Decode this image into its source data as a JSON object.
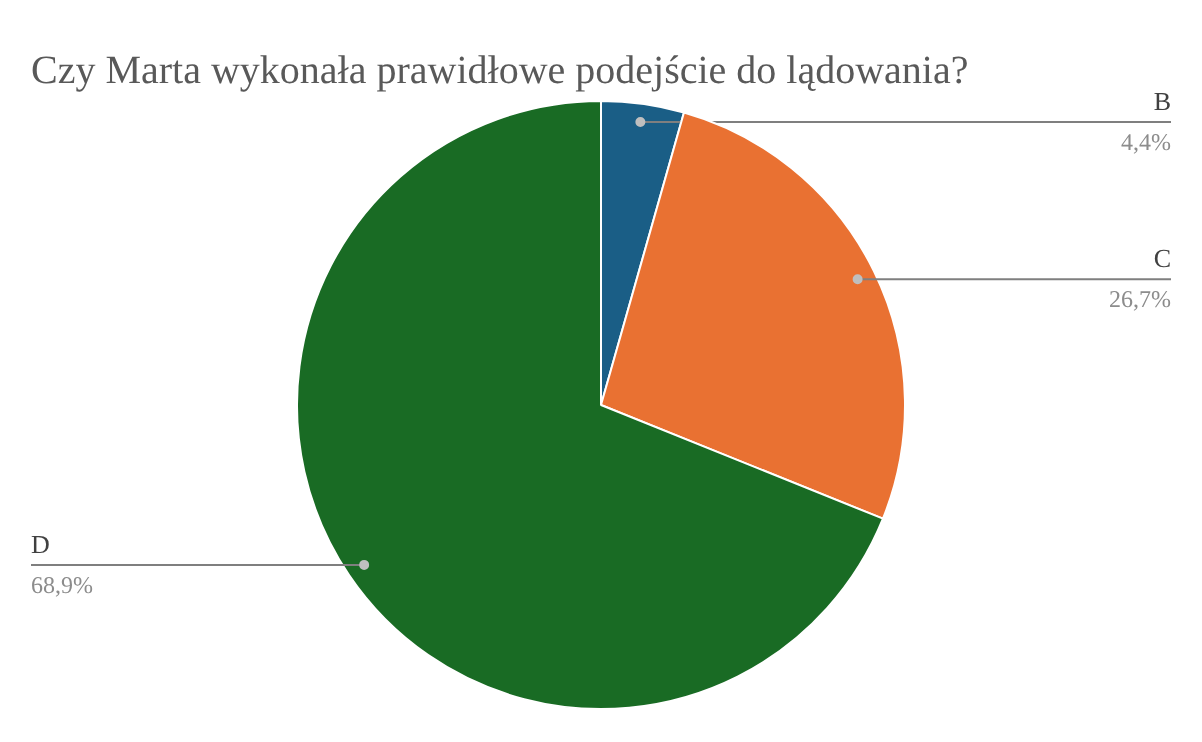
{
  "chart_data": {
    "type": "pie",
    "title": "Czy Marta wykonała prawidłowe podejście do lądowania?",
    "categories": [
      "B",
      "C",
      "D"
    ],
    "values": [
      4.4,
      26.7,
      68.9
    ],
    "value_labels": [
      "4,4%",
      "26,7%",
      "68,9%"
    ],
    "colors": [
      "#1a5e86",
      "#e97132",
      "#196b24"
    ]
  }
}
